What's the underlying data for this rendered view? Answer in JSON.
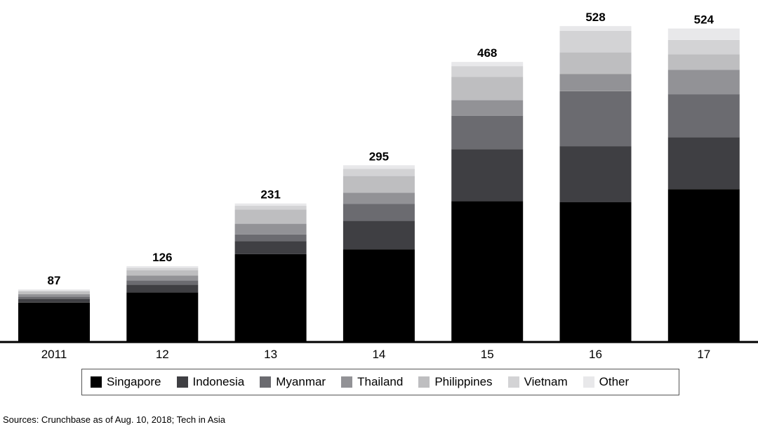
{
  "chart_data": {
    "type": "bar",
    "stacked": true,
    "categories": [
      "2011",
      "12",
      "13",
      "14",
      "15",
      "16",
      "17"
    ],
    "totals": [
      87,
      126,
      231,
      295,
      468,
      528,
      524
    ],
    "series": [
      {
        "name": "Singapore",
        "color": "#000000",
        "values": [
          65,
          82,
          146,
          154,
          235,
          233,
          255
        ]
      },
      {
        "name": "Indonesia",
        "color": "#3f3f43",
        "values": [
          6,
          13,
          22,
          48,
          87,
          94,
          87
        ]
      },
      {
        "name": "Myanmar",
        "color": "#6b6b70",
        "values": [
          4,
          7,
          11,
          28,
          56,
          92,
          72
        ]
      },
      {
        "name": "Thailand",
        "color": "#929296",
        "values": [
          4,
          8,
          18,
          19,
          26,
          29,
          41
        ]
      },
      {
        "name": "Philippines",
        "color": "#bebec0",
        "values": [
          4,
          9,
          24,
          28,
          39,
          36,
          26
        ]
      },
      {
        "name": "Vietnam",
        "color": "#d3d3d5",
        "values": [
          2,
          4,
          6,
          12,
          18,
          36,
          24
        ]
      },
      {
        "name": "Other",
        "color": "#e8e8ea",
        "values": [
          2,
          3,
          4,
          6,
          7,
          8,
          19
        ]
      }
    ],
    "ylim": [
      0,
      560
    ],
    "grid": false,
    "legend_position": "bottom"
  },
  "source_note": "Sources: Crunchbase as of Aug. 10, 2018; Tech in Asia"
}
